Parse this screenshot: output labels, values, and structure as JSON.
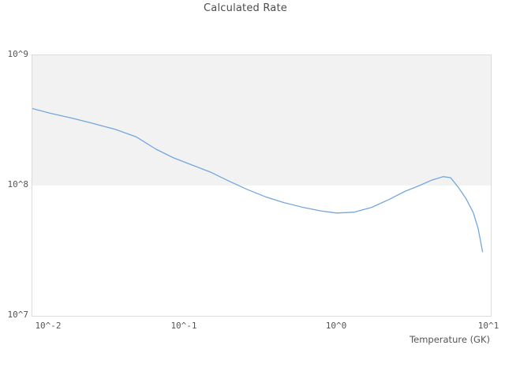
{
  "chart": {
    "title": "Calculated Rate",
    "x_axis_label": "Temperature (GK)",
    "x_ticks": [
      "10^-2",
      "10^-1",
      "10^0",
      "10^1"
    ],
    "y_ticks": [
      "10^9",
      "10^8",
      "10^7"
    ],
    "line_color": "#74a7dc",
    "band_color": "#f2f2f2",
    "border_color": "#dcdcdc",
    "text_color": "#555555"
  },
  "chart_data": {
    "type": "line",
    "title": "Calculated Rate",
    "xlabel": "Temperature (GK)",
    "ylabel": "",
    "xscale": "log",
    "yscale": "log",
    "xlim": [
      0.01,
      10.3
    ],
    "ylim": [
      10000000.0,
      1000000000.0
    ],
    "grid": false,
    "legend_position": "none",
    "x": [
      0.01,
      0.013,
      0.018,
      0.025,
      0.035,
      0.048,
      0.065,
      0.085,
      0.11,
      0.15,
      0.2,
      0.26,
      0.34,
      0.45,
      0.6,
      0.78,
      1.0,
      1.3,
      1.7,
      2.2,
      2.8,
      3.5,
      4.2,
      5.0,
      5.6,
      6.3,
      7.1,
      7.9,
      8.5,
      9.1
    ],
    "series": [
      {
        "name": "calculated-rate",
        "values": [
          390000000.0,
          360000000.0,
          330000000.0,
          300000000.0,
          270000000.0,
          237000000.0,
          190000000.0,
          163000000.0,
          145000000.0,
          126000000.0,
          107000000.0,
          93000000.0,
          82000000.0,
          74000000.0,
          68000000.0,
          64000000.0,
          61500000.0,
          62500000.0,
          68000000.0,
          78000000.0,
          90000000.0,
          100000000.0,
          110000000.0,
          117000000.0,
          115000000.0,
          97000000.0,
          79000000.0,
          62000000.0,
          47000000.0,
          31000000.0
        ]
      }
    ]
  }
}
